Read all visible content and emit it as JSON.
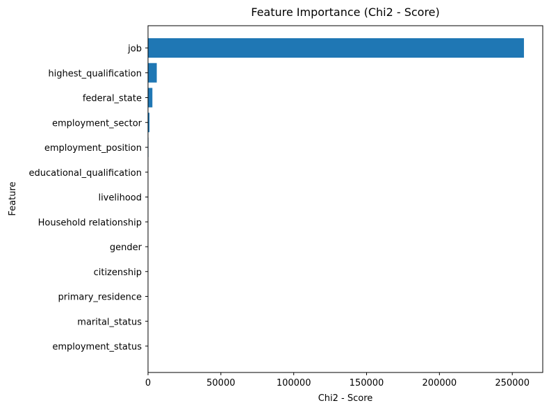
{
  "chart_data": {
    "type": "bar",
    "orientation": "horizontal",
    "title": "Feature Importance (Chi2 - Score)",
    "xlabel": "Chi2 - Score",
    "ylabel": "Feature",
    "categories": [
      "job",
      "highest_qualification",
      "federal_state",
      "employment_sector",
      "employment_position",
      "educational_qualification",
      "livelihood",
      "Household relationship",
      "gender",
      "citizenship",
      "primary_residence",
      "marital_status",
      "employment_status"
    ],
    "values": [
      258000,
      6000,
      3000,
      1000,
      300,
      200,
      150,
      100,
      60,
      40,
      20,
      10,
      5
    ],
    "xlim": [
      0,
      270900
    ],
    "xticks": [
      0,
      50000,
      100000,
      150000,
      200000,
      250000
    ],
    "grid": false,
    "legend": "none",
    "bar_color": "#1f77b4"
  }
}
